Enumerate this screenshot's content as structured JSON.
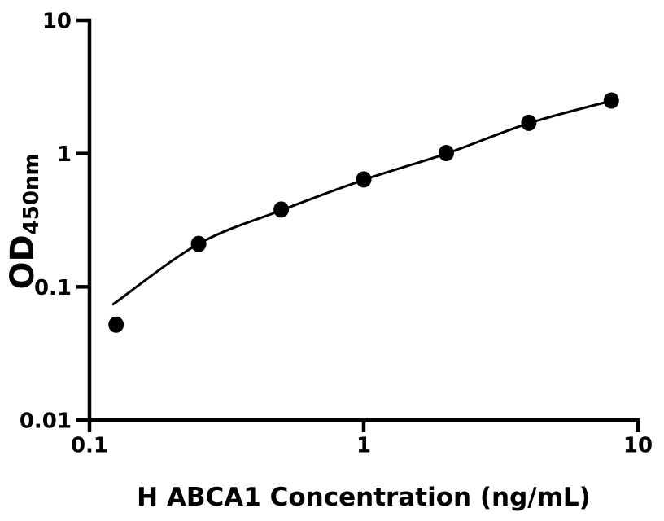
{
  "chart_data": {
    "type": "scatter",
    "title": "",
    "xlabel": "H ABCA1 Concentration (ng/mL)",
    "ylabel_main": "OD",
    "ylabel_sub": "450nm",
    "xscale": "log",
    "yscale": "log",
    "xlim": [
      0.1,
      10
    ],
    "ylim": [
      0.01,
      10
    ],
    "grid": false,
    "legend": "none",
    "x_ticks": [
      {
        "value": 0.1,
        "label": "0.1"
      },
      {
        "value": 1,
        "label": "1"
      },
      {
        "value": 10,
        "label": "10"
      }
    ],
    "y_ticks": [
      {
        "value": 10,
        "label": "10"
      },
      {
        "value": 1,
        "label": "1"
      },
      {
        "value": 0.1,
        "label": "0.1"
      },
      {
        "value": 0.01,
        "label": "0.01"
      }
    ],
    "series": [
      {
        "name": "standard-curve-data-points",
        "marker": "filled-circle",
        "x": [
          0.125,
          0.25,
          0.5,
          1,
          2,
          4,
          8
        ],
        "y": [
          0.052,
          0.21,
          0.38,
          0.64,
          1.01,
          1.7,
          2.5
        ]
      }
    ],
    "fit_curve": [
      [
        0.122,
        0.074
      ],
      [
        0.25,
        0.21
      ],
      [
        0.5,
        0.375
      ],
      [
        1,
        0.635
      ],
      [
        2,
        1.0
      ],
      [
        4,
        1.69
      ],
      [
        8,
        2.49
      ]
    ],
    "colors": {
      "marker": "#000000",
      "line": "#000000",
      "axis": "#000000",
      "background": "#ffffff"
    }
  }
}
